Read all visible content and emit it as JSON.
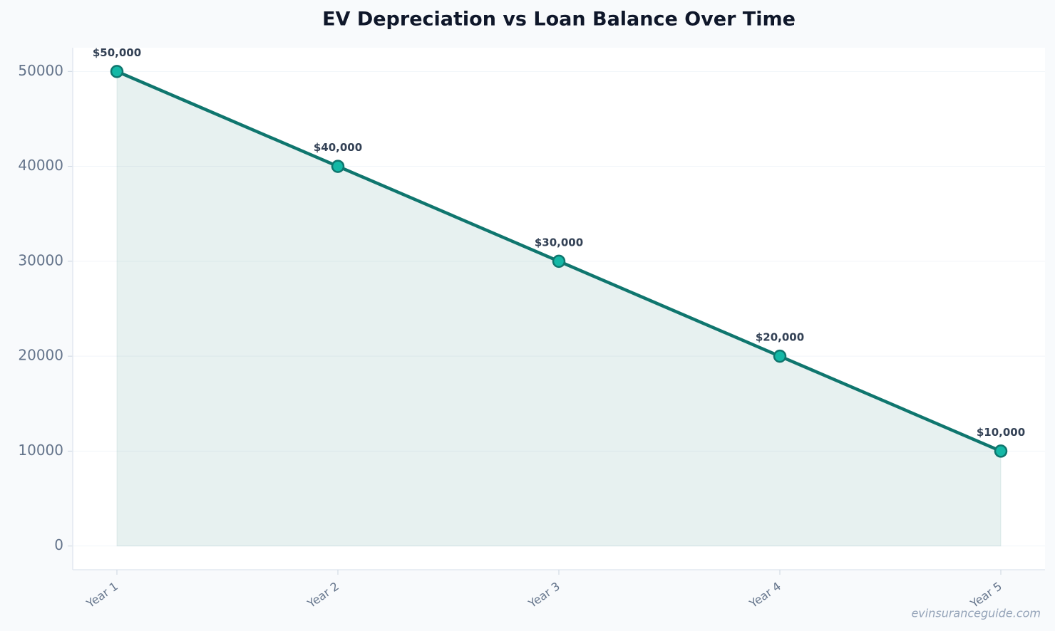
{
  "chart_data": {
    "type": "line",
    "title": "EV Depreciation vs Loan Balance Over Time",
    "categories": [
      "Year 1",
      "Year 2",
      "Year 3",
      "Year 4",
      "Year 5"
    ],
    "values": [
      50000,
      40000,
      30000,
      20000,
      10000
    ],
    "value_labels": [
      "$50,000",
      "$40,000",
      "$30,000",
      "$20,000",
      "$10,000"
    ],
    "color": "#0f766e",
    "marker_color": "#14b8a6",
    "area": true,
    "ylim": [
      -2500,
      52500
    ],
    "yticks": [
      0,
      10000,
      20000,
      30000,
      40000,
      50000
    ],
    "grid": true
  },
  "watermark": "evinsuranceguide.com"
}
